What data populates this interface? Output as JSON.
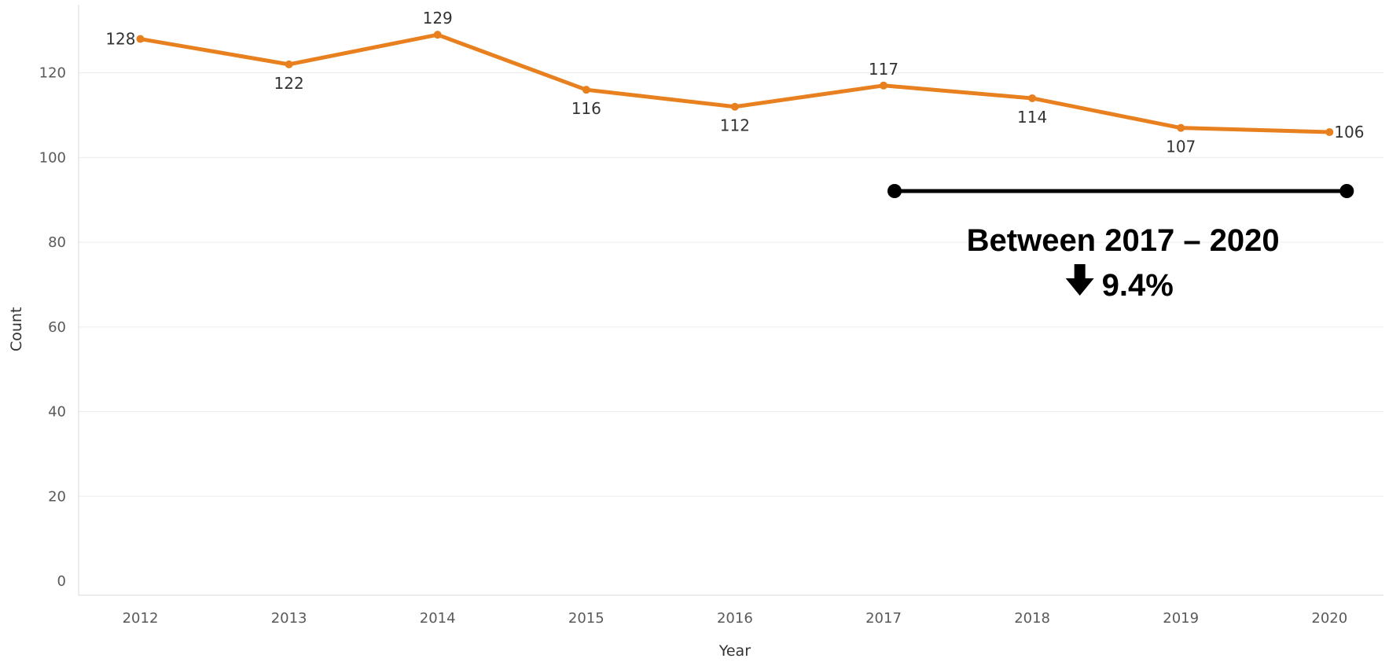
{
  "chart_data": {
    "type": "line",
    "title": "",
    "xlabel": "Year",
    "ylabel": "Count",
    "ylim": [
      0,
      132
    ],
    "yticks": [
      0,
      20,
      40,
      60,
      80,
      100,
      120
    ],
    "grid": true,
    "x": [
      "2012",
      "2013",
      "2014",
      "2015",
      "2016",
      "2017",
      "2018",
      "2019",
      "2020"
    ],
    "series": [
      {
        "values": [
          128,
          122,
          129,
          116,
          112,
          117,
          114,
          107,
          106
        ],
        "color": "#e8801f"
      }
    ],
    "data_labels": [
      "128",
      "122",
      "129",
      "116",
      "112",
      "117",
      "114",
      "107",
      "106"
    ],
    "annotations": [
      {
        "text": "Between 2017 – 2020",
        "change_text": "9.4%",
        "direction": "down",
        "icon": "arrow-down-icon",
        "span": [
          "2017",
          "2020"
        ],
        "color": "#000000"
      }
    ]
  }
}
